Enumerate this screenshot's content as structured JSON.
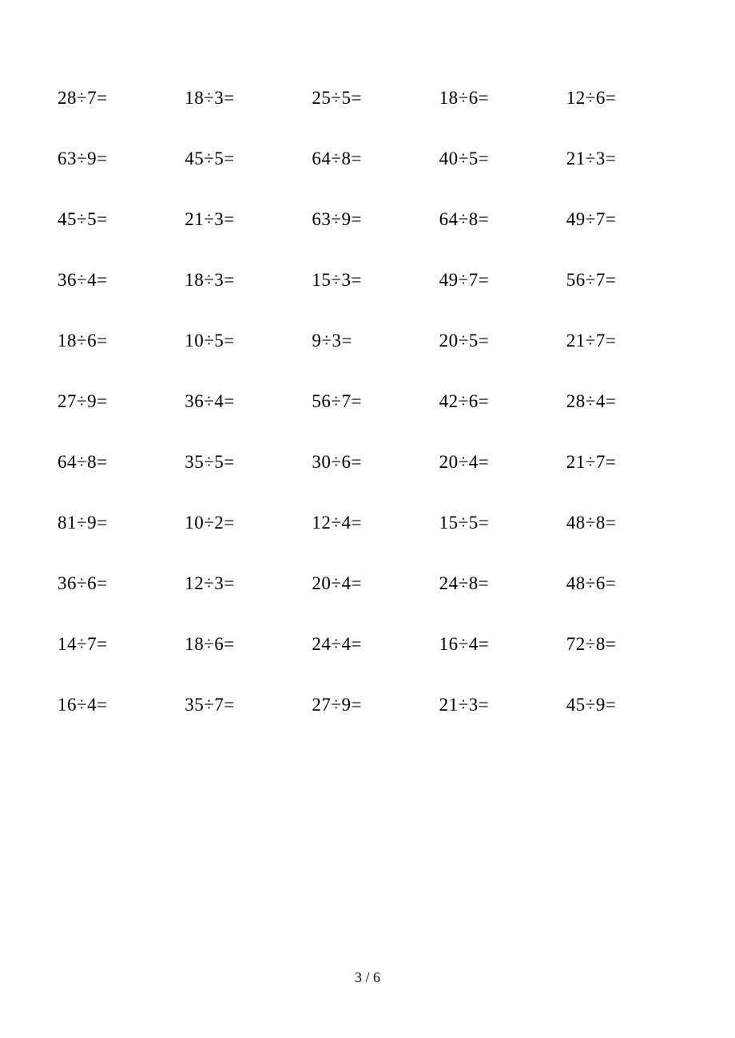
{
  "worksheet": {
    "type": "table",
    "columns": 5,
    "rows": 11,
    "font_family": "Times New Roman",
    "font_size_pt": 17,
    "text_color": "#000000",
    "background_color": "#ffffff",
    "division_symbol": "÷",
    "equals_symbol": "=",
    "problems": [
      [
        {
          "a": 28,
          "b": 7
        },
        {
          "a": 18,
          "b": 3
        },
        {
          "a": 25,
          "b": 5
        },
        {
          "a": 18,
          "b": 6,
          "alt": true
        },
        {
          "a": 12,
          "b": 6
        }
      ],
      [
        {
          "a": 63,
          "b": 9
        },
        {
          "a": 45,
          "b": 5
        },
        {
          "a": 64,
          "b": 8
        },
        {
          "a": 40,
          "b": 5
        },
        {
          "a": 21,
          "b": 3
        }
      ],
      [
        {
          "a": 45,
          "b": 5
        },
        {
          "a": 21,
          "b": 3
        },
        {
          "a": 63,
          "b": 9
        },
        {
          "a": 64,
          "b": 8
        },
        {
          "a": 49,
          "b": 7
        }
      ],
      [
        {
          "a": 36,
          "b": 4
        },
        {
          "a": 18,
          "b": 3
        },
        {
          "a": 15,
          "b": 3
        },
        {
          "a": 49,
          "b": 7
        },
        {
          "a": 56,
          "b": 7
        }
      ],
      [
        {
          "a": 18,
          "b": 6
        },
        {
          "a": 10,
          "b": 5
        },
        {
          "a": 9,
          "b": 3
        },
        {
          "a": 20,
          "b": 5
        },
        {
          "a": 21,
          "b": 7
        }
      ],
      [
        {
          "a": 27,
          "b": 9
        },
        {
          "a": 36,
          "b": 4
        },
        {
          "a": 56,
          "b": 7
        },
        {
          "a": 42,
          "b": 6
        },
        {
          "a": 28,
          "b": 4
        }
      ],
      [
        {
          "a": 64,
          "b": 8
        },
        {
          "a": 35,
          "b": 5
        },
        {
          "a": 30,
          "b": 6
        },
        {
          "a": 20,
          "b": 4
        },
        {
          "a": 21,
          "b": 7
        }
      ],
      [
        {
          "a": 81,
          "b": 9
        },
        {
          "a": 10,
          "b": 2
        },
        {
          "a": 12,
          "b": 4
        },
        {
          "a": 15,
          "b": 5
        },
        {
          "a": 48,
          "b": 8
        }
      ],
      [
        {
          "a": 36,
          "b": 6
        },
        {
          "a": 12,
          "b": 3
        },
        {
          "a": 20,
          "b": 4
        },
        {
          "a": 24,
          "b": 8
        },
        {
          "a": 48,
          "b": 6
        }
      ],
      [
        {
          "a": 14,
          "b": 7
        },
        {
          "a": 18,
          "b": 6
        },
        {
          "a": 24,
          "b": 4
        },
        {
          "a": 16,
          "b": 4
        },
        {
          "a": 72,
          "b": 8
        }
      ],
      [
        {
          "a": 16,
          "b": 4
        },
        {
          "a": 35,
          "b": 7
        },
        {
          "a": 27,
          "b": 9
        },
        {
          "a": 21,
          "b": 3
        },
        {
          "a": 45,
          "b": 9
        }
      ]
    ]
  },
  "page_footer": {
    "current": 3,
    "total": 6,
    "separator": " / "
  }
}
